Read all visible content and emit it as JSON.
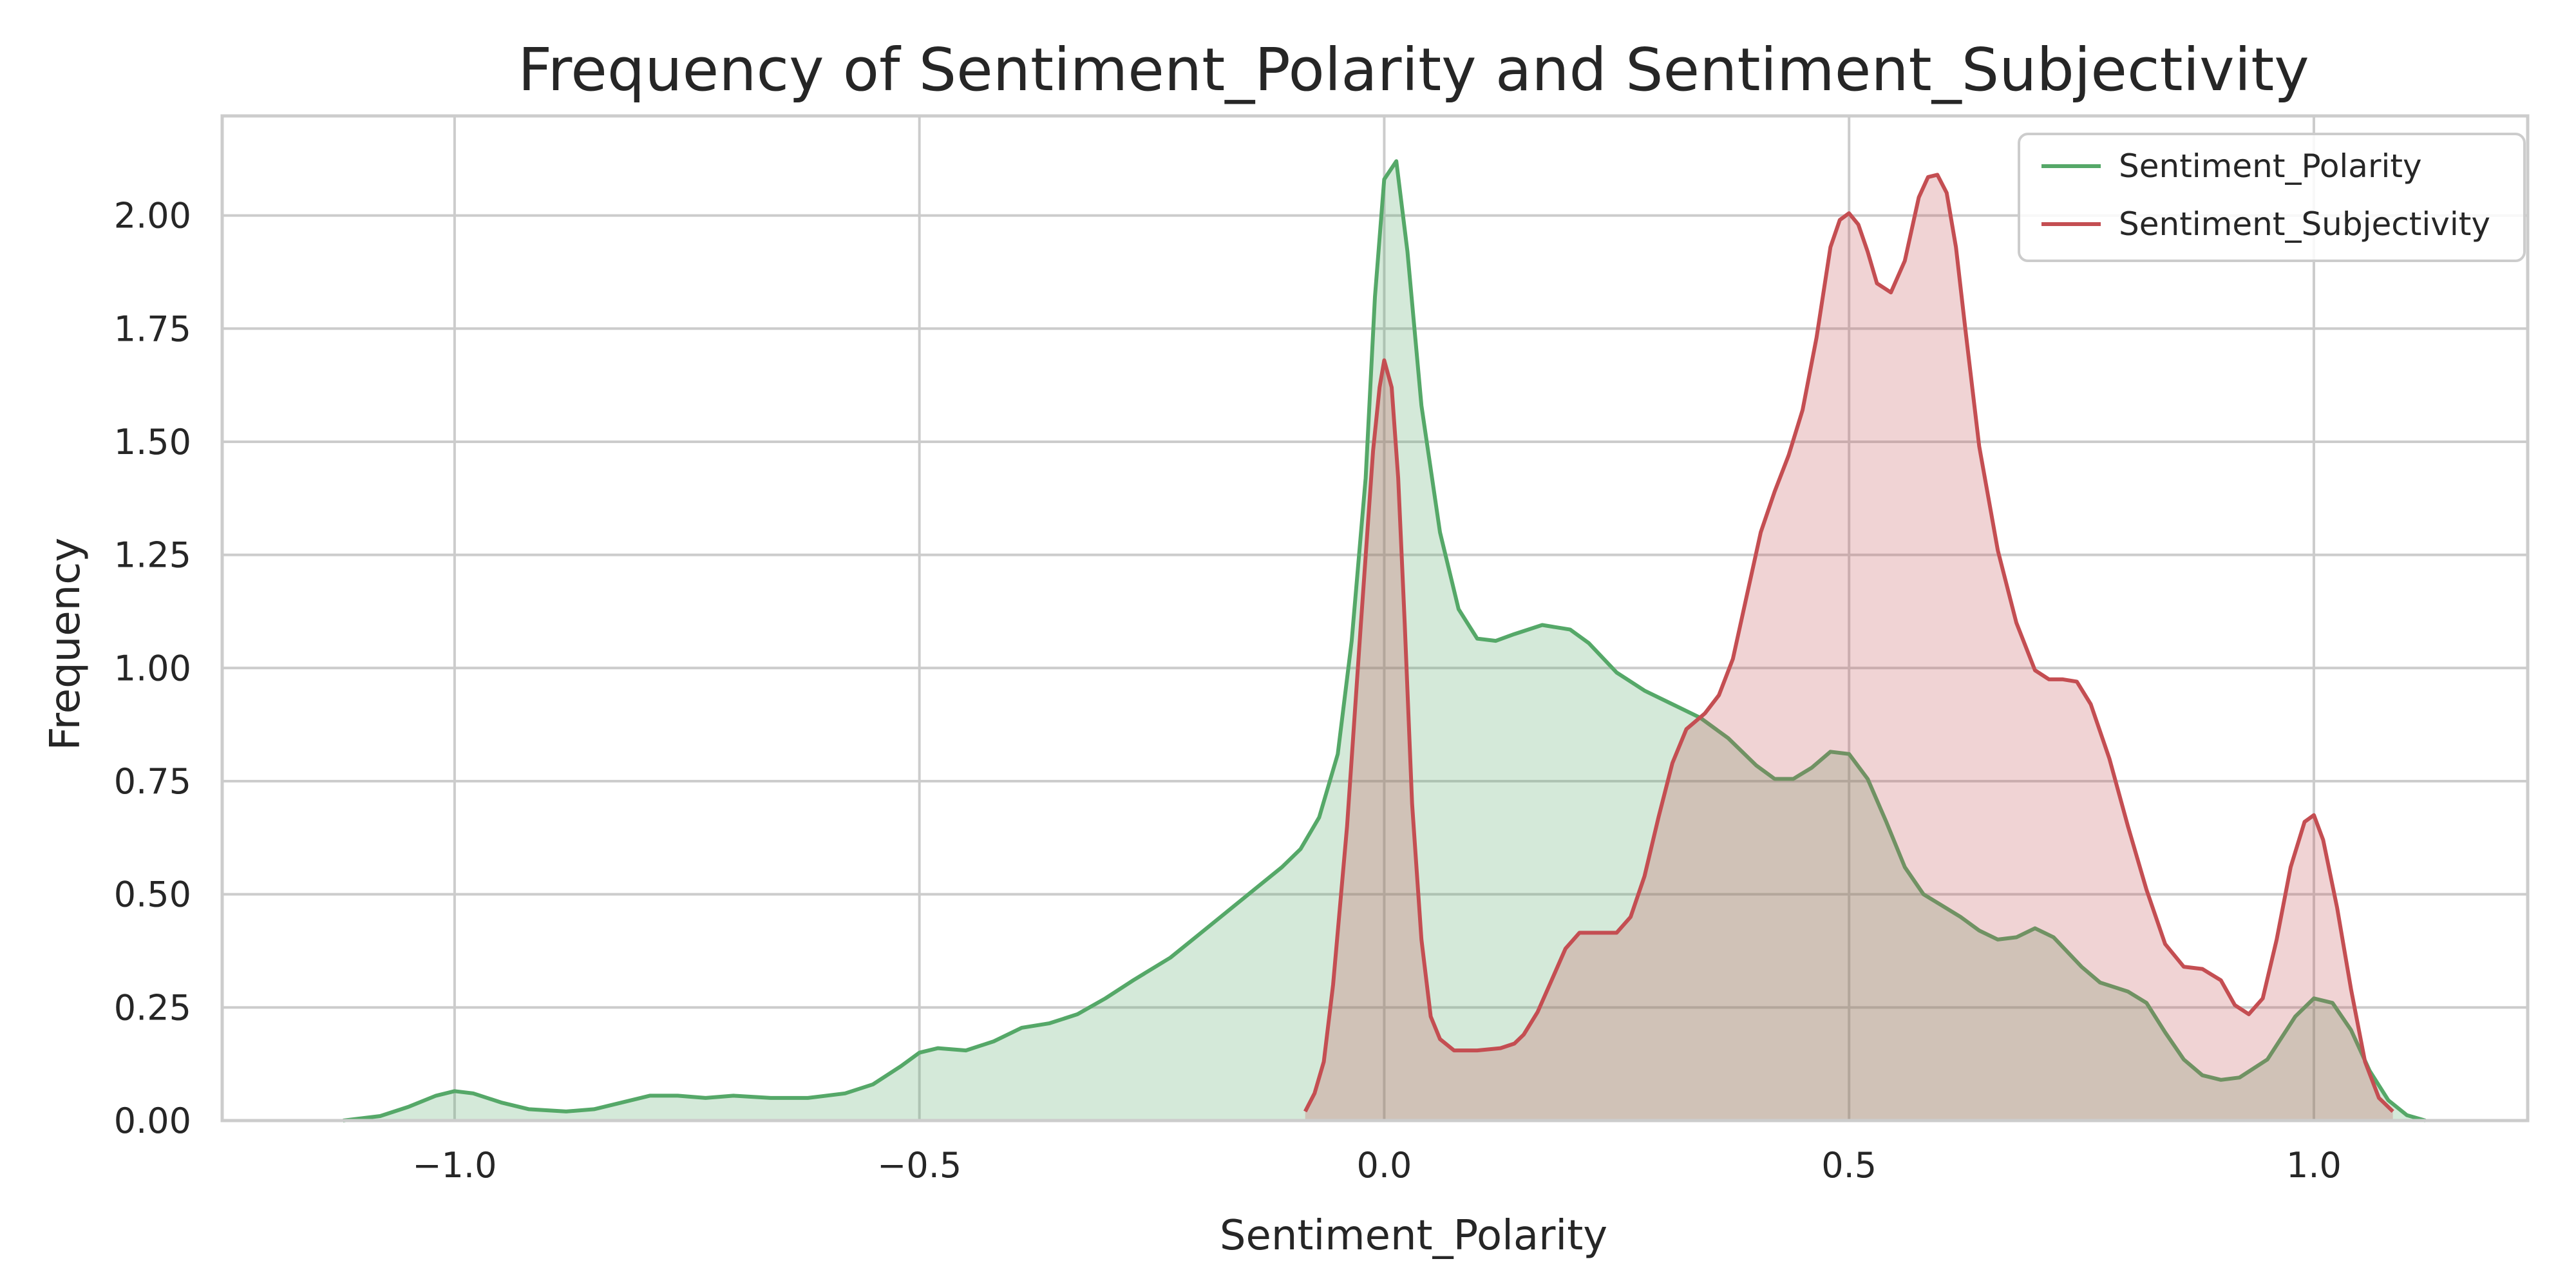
{
  "chart_data": {
    "type": "area",
    "title": "Frequency of Sentiment_Polarity and Sentiment_Subjectivity",
    "xlabel": "Sentiment_Polarity",
    "ylabel": "Frequency",
    "xlim": [
      -1.25,
      1.23
    ],
    "ylim": [
      0,
      2.22
    ],
    "grid": true,
    "legend_position": "top-right",
    "x_ticks": [
      -1.0,
      -0.5,
      0.0,
      0.5,
      1.0
    ],
    "x_tick_labels": [
      "−1.0",
      "−0.5",
      "0.0",
      "0.5",
      "1.0"
    ],
    "y_ticks": [
      0,
      0.25,
      0.5,
      0.75,
      1.0,
      1.25,
      1.5,
      1.75,
      2.0
    ],
    "y_tick_labels": [
      "0.00",
      "0.25",
      "0.50",
      "0.75",
      "1.00",
      "1.25",
      "1.50",
      "1.75",
      "2.00"
    ],
    "series": [
      {
        "name": "Sentiment_Polarity",
        "color": "#55a868",
        "fill": "#55a868",
        "points": [
          [
            -1.12,
            0.0
          ],
          [
            -1.08,
            0.01
          ],
          [
            -1.05,
            0.03
          ],
          [
            -1.02,
            0.055
          ],
          [
            -1.0,
            0.065
          ],
          [
            -0.98,
            0.06
          ],
          [
            -0.95,
            0.04
          ],
          [
            -0.92,
            0.025
          ],
          [
            -0.88,
            0.02
          ],
          [
            -0.85,
            0.025
          ],
          [
            -0.82,
            0.04
          ],
          [
            -0.79,
            0.055
          ],
          [
            -0.76,
            0.055
          ],
          [
            -0.73,
            0.05
          ],
          [
            -0.7,
            0.055
          ],
          [
            -0.66,
            0.05
          ],
          [
            -0.62,
            0.05
          ],
          [
            -0.58,
            0.06
          ],
          [
            -0.55,
            0.08
          ],
          [
            -0.52,
            0.12
          ],
          [
            -0.5,
            0.15
          ],
          [
            -0.48,
            0.16
          ],
          [
            -0.45,
            0.155
          ],
          [
            -0.42,
            0.175
          ],
          [
            -0.39,
            0.205
          ],
          [
            -0.36,
            0.215
          ],
          [
            -0.33,
            0.235
          ],
          [
            -0.3,
            0.27
          ],
          [
            -0.27,
            0.31
          ],
          [
            -0.23,
            0.36
          ],
          [
            -0.2,
            0.41
          ],
          [
            -0.17,
            0.46
          ],
          [
            -0.14,
            0.51
          ],
          [
            -0.11,
            0.56
          ],
          [
            -0.09,
            0.6
          ],
          [
            -0.07,
            0.67
          ],
          [
            -0.05,
            0.81
          ],
          [
            -0.035,
            1.06
          ],
          [
            -0.02,
            1.42
          ],
          [
            -0.01,
            1.82
          ],
          [
            0.0,
            2.08
          ],
          [
            0.013,
            2.12
          ],
          [
            0.025,
            1.92
          ],
          [
            0.04,
            1.58
          ],
          [
            0.06,
            1.3
          ],
          [
            0.08,
            1.13
          ],
          [
            0.1,
            1.065
          ],
          [
            0.12,
            1.06
          ],
          [
            0.14,
            1.075
          ],
          [
            0.17,
            1.095
          ],
          [
            0.2,
            1.085
          ],
          [
            0.22,
            1.055
          ],
          [
            0.25,
            0.99
          ],
          [
            0.28,
            0.95
          ],
          [
            0.31,
            0.92
          ],
          [
            0.34,
            0.89
          ],
          [
            0.37,
            0.845
          ],
          [
            0.4,
            0.785
          ],
          [
            0.42,
            0.755
          ],
          [
            0.44,
            0.755
          ],
          [
            0.46,
            0.78
          ],
          [
            0.48,
            0.815
          ],
          [
            0.5,
            0.81
          ],
          [
            0.52,
            0.755
          ],
          [
            0.54,
            0.66
          ],
          [
            0.56,
            0.56
          ],
          [
            0.58,
            0.5
          ],
          [
            0.6,
            0.475
          ],
          [
            0.62,
            0.45
          ],
          [
            0.64,
            0.42
          ],
          [
            0.66,
            0.4
          ],
          [
            0.68,
            0.405
          ],
          [
            0.7,
            0.425
          ],
          [
            0.72,
            0.405
          ],
          [
            0.75,
            0.34
          ],
          [
            0.77,
            0.305
          ],
          [
            0.8,
            0.285
          ],
          [
            0.82,
            0.26
          ],
          [
            0.84,
            0.195
          ],
          [
            0.86,
            0.135
          ],
          [
            0.88,
            0.1
          ],
          [
            0.9,
            0.09
          ],
          [
            0.92,
            0.095
          ],
          [
            0.95,
            0.135
          ],
          [
            0.98,
            0.23
          ],
          [
            1.0,
            0.27
          ],
          [
            1.02,
            0.26
          ],
          [
            1.04,
            0.2
          ],
          [
            1.06,
            0.11
          ],
          [
            1.08,
            0.045
          ],
          [
            1.1,
            0.012
          ],
          [
            1.12,
            0.0
          ]
        ]
      },
      {
        "name": "Sentiment_Subjectivity",
        "color": "#c44e52",
        "fill": "#c44e52",
        "points": [
          [
            -0.085,
            0.02
          ],
          [
            -0.075,
            0.06
          ],
          [
            -0.065,
            0.13
          ],
          [
            -0.055,
            0.3
          ],
          [
            -0.04,
            0.65
          ],
          [
            -0.025,
            1.1
          ],
          [
            -0.012,
            1.48
          ],
          [
            -0.005,
            1.62
          ],
          [
            0.0,
            1.68
          ],
          [
            0.008,
            1.62
          ],
          [
            0.015,
            1.42
          ],
          [
            0.022,
            1.1
          ],
          [
            0.03,
            0.7
          ],
          [
            0.04,
            0.4
          ],
          [
            0.05,
            0.23
          ],
          [
            0.06,
            0.18
          ],
          [
            0.075,
            0.155
          ],
          [
            0.1,
            0.155
          ],
          [
            0.125,
            0.16
          ],
          [
            0.14,
            0.17
          ],
          [
            0.15,
            0.19
          ],
          [
            0.165,
            0.24
          ],
          [
            0.18,
            0.31
          ],
          [
            0.195,
            0.38
          ],
          [
            0.21,
            0.415
          ],
          [
            0.23,
            0.415
          ],
          [
            0.25,
            0.415
          ],
          [
            0.265,
            0.45
          ],
          [
            0.28,
            0.54
          ],
          [
            0.295,
            0.67
          ],
          [
            0.31,
            0.79
          ],
          [
            0.325,
            0.865
          ],
          [
            0.345,
            0.9
          ],
          [
            0.36,
            0.94
          ],
          [
            0.375,
            1.02
          ],
          [
            0.39,
            1.16
          ],
          [
            0.405,
            1.3
          ],
          [
            0.42,
            1.39
          ],
          [
            0.435,
            1.47
          ],
          [
            0.45,
            1.57
          ],
          [
            0.465,
            1.73
          ],
          [
            0.48,
            1.93
          ],
          [
            0.49,
            1.99
          ],
          [
            0.5,
            2.005
          ],
          [
            0.51,
            1.98
          ],
          [
            0.52,
            1.92
          ],
          [
            0.53,
            1.85
          ],
          [
            0.545,
            1.83
          ],
          [
            0.56,
            1.9
          ],
          [
            0.575,
            2.04
          ],
          [
            0.585,
            2.085
          ],
          [
            0.595,
            2.09
          ],
          [
            0.605,
            2.05
          ],
          [
            0.615,
            1.93
          ],
          [
            0.625,
            1.75
          ],
          [
            0.64,
            1.49
          ],
          [
            0.66,
            1.26
          ],
          [
            0.68,
            1.1
          ],
          [
            0.7,
            0.995
          ],
          [
            0.715,
            0.975
          ],
          [
            0.73,
            0.975
          ],
          [
            0.745,
            0.97
          ],
          [
            0.76,
            0.92
          ],
          [
            0.78,
            0.8
          ],
          [
            0.8,
            0.65
          ],
          [
            0.82,
            0.51
          ],
          [
            0.84,
            0.39
          ],
          [
            0.86,
            0.34
          ],
          [
            0.88,
            0.335
          ],
          [
            0.9,
            0.31
          ],
          [
            0.915,
            0.255
          ],
          [
            0.93,
            0.235
          ],
          [
            0.945,
            0.27
          ],
          [
            0.96,
            0.4
          ],
          [
            0.975,
            0.56
          ],
          [
            0.99,
            0.66
          ],
          [
            1.0,
            0.675
          ],
          [
            1.01,
            0.62
          ],
          [
            1.025,
            0.47
          ],
          [
            1.04,
            0.29
          ],
          [
            1.055,
            0.13
          ],
          [
            1.07,
            0.05
          ],
          [
            1.085,
            0.02
          ]
        ]
      }
    ]
  }
}
